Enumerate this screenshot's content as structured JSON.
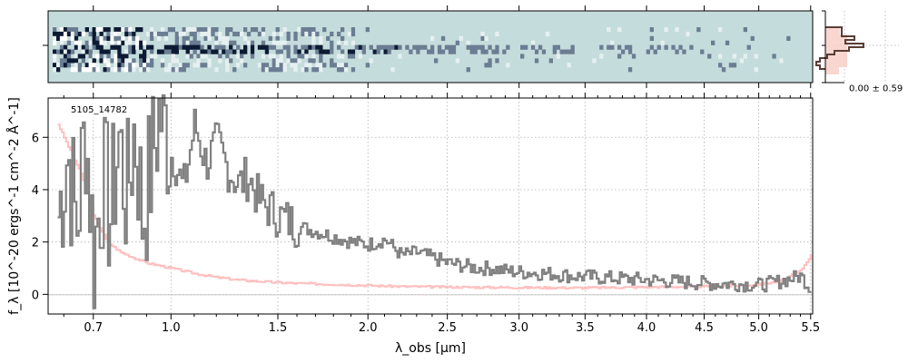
{
  "chart_data": [
    {
      "type": "heatmap",
      "panel": "2d-spectrum",
      "background_color": "#c5dcdc",
      "colormap": [
        "#ffffff",
        "#c5dcdc",
        "#0c1a33"
      ],
      "x_range_um": [
        0.55,
        5.52
      ],
      "trace_center_fraction": 0.5
    },
    {
      "type": "line",
      "panel": "1d-spectrum",
      "xlabel": "λ_obs [μm]",
      "ylabel": "f_λ [10^-20 ergs^-1 cm^-2 Å^-1]",
      "annotation": "5105_14782",
      "xlim": [
        0.55,
        5.52
      ],
      "ylim": [
        -0.75,
        7.5
      ],
      "x_scale": "sqrt",
      "x_ticks": [
        0.7,
        1.0,
        1.5,
        2.0,
        2.5,
        3.0,
        3.5,
        4.0,
        4.5,
        5.0,
        5.5
      ],
      "x_tick_labels": [
        "0.7",
        "1.0",
        "1.5",
        "2.0",
        "2.5",
        "3.0",
        "3.5",
        "4.0",
        "4.5",
        "5.0",
        "5.5"
      ],
      "y_ticks": [
        0,
        2,
        4,
        6
      ],
      "y_tick_labels": [
        "0",
        "2",
        "4",
        "6"
      ],
      "grid": true,
      "series": [
        {
          "role": "flux",
          "color": "#808080",
          "x": [
            0.58,
            0.61,
            0.64,
            0.67,
            0.7,
            0.73,
            0.76,
            0.79,
            0.82,
            0.85,
            0.88,
            0.91,
            0.95,
            1.0,
            1.05,
            1.1,
            1.15,
            1.2,
            1.25,
            1.3,
            1.35,
            1.4,
            1.5,
            1.6,
            1.7,
            1.8,
            1.9,
            2.0,
            2.1,
            2.2,
            2.3,
            2.4,
            2.5,
            2.6,
            2.7,
            2.8,
            2.9,
            3.0,
            3.2,
            3.4,
            3.6,
            3.8,
            4.0,
            4.2,
            4.4,
            4.6,
            4.8,
            5.0,
            5.2,
            5.4,
            5.5
          ],
          "y": [
            3.0,
            5.5,
            2.5,
            6.5,
            1.5,
            4.5,
            3.0,
            6.0,
            3.5,
            6.5,
            3.0,
            4.5,
            7.0,
            5.5,
            4.0,
            6.5,
            5.0,
            5.8,
            4.8,
            4.2,
            4.5,
            3.6,
            3.0,
            2.6,
            2.4,
            2.2,
            2.0,
            1.9,
            2.1,
            1.5,
            1.6,
            1.4,
            1.2,
            1.1,
            1.0,
            1.0,
            0.9,
            0.85,
            0.8,
            0.7,
            0.65,
            0.6,
            0.55,
            0.5,
            0.45,
            0.4,
            0.4,
            0.35,
            0.5,
            0.7,
            0.2
          ]
        },
        {
          "role": "error",
          "color": "#ffaaaa",
          "x": [
            0.58,
            0.62,
            0.66,
            0.7,
            0.75,
            0.8,
            0.85,
            0.9,
            1.0,
            1.1,
            1.2,
            1.3,
            1.4,
            1.5,
            1.6,
            1.7,
            1.8,
            2.0,
            2.2,
            2.5,
            3.0,
            3.5,
            4.0,
            4.5,
            4.8,
            5.0,
            5.2,
            5.4,
            5.5
          ],
          "y": [
            6.5,
            5.5,
            4.5,
            3.0,
            2.0,
            1.6,
            1.4,
            1.2,
            1.0,
            0.8,
            0.65,
            0.55,
            0.5,
            0.45,
            0.42,
            0.4,
            0.38,
            0.34,
            0.3,
            0.28,
            0.26,
            0.25,
            0.28,
            0.3,
            0.33,
            0.38,
            0.5,
            0.9,
            1.5
          ]
        }
      ]
    },
    {
      "type": "histogram",
      "panel": "residual-histogram",
      "label": "0.00 ± 0.59",
      "step_color": "#5a3e36",
      "fill_color": "#f8cfc8"
    }
  ]
}
